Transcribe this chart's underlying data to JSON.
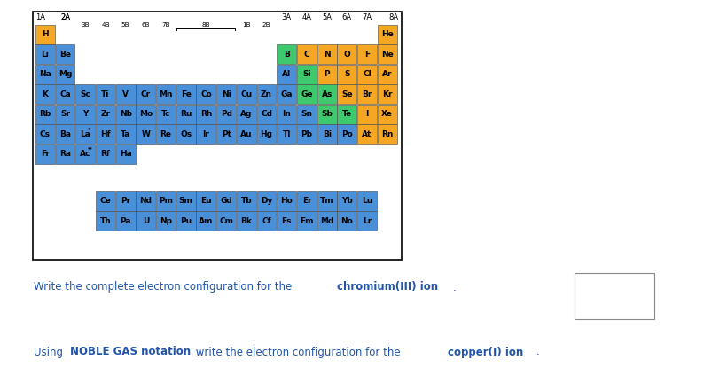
{
  "bg_color": "#ffffff",
  "colors": {
    "orange": "#F5A623",
    "blue": "#4A90D9",
    "green": "#3EC96E",
    "white": "#ffffff"
  },
  "text_color": "#2255AA",
  "text_fontsize": 8.5,
  "elements": {
    "row1": [
      {
        "sym": "H",
        "col": 0,
        "color": "orange"
      },
      {
        "sym": "He",
        "col": 17,
        "color": "orange"
      }
    ],
    "row2": [
      {
        "sym": "Li",
        "col": 0,
        "color": "blue"
      },
      {
        "sym": "Be",
        "col": 1,
        "color": "blue"
      },
      {
        "sym": "B",
        "col": 12,
        "color": "green"
      },
      {
        "sym": "C",
        "col": 13,
        "color": "orange"
      },
      {
        "sym": "N",
        "col": 14,
        "color": "orange"
      },
      {
        "sym": "O",
        "col": 15,
        "color": "orange"
      },
      {
        "sym": "F",
        "col": 16,
        "color": "orange"
      },
      {
        "sym": "Ne",
        "col": 17,
        "color": "orange"
      }
    ],
    "row3": [
      {
        "sym": "Na",
        "col": 0,
        "color": "blue"
      },
      {
        "sym": "Mg",
        "col": 1,
        "color": "blue"
      },
      {
        "sym": "Al",
        "col": 12,
        "color": "blue"
      },
      {
        "sym": "Si",
        "col": 13,
        "color": "green"
      },
      {
        "sym": "P",
        "col": 14,
        "color": "orange"
      },
      {
        "sym": "S",
        "col": 15,
        "color": "orange"
      },
      {
        "sym": "Cl",
        "col": 16,
        "color": "orange"
      },
      {
        "sym": "Ar",
        "col": 17,
        "color": "orange"
      }
    ],
    "row4": [
      {
        "sym": "K",
        "col": 0,
        "color": "blue"
      },
      {
        "sym": "Ca",
        "col": 1,
        "color": "blue"
      },
      {
        "sym": "Sc",
        "col": 2,
        "color": "blue"
      },
      {
        "sym": "Ti",
        "col": 3,
        "color": "blue"
      },
      {
        "sym": "V",
        "col": 4,
        "color": "blue"
      },
      {
        "sym": "Cr",
        "col": 5,
        "color": "blue"
      },
      {
        "sym": "Mn",
        "col": 6,
        "color": "blue"
      },
      {
        "sym": "Fe",
        "col": 7,
        "color": "blue"
      },
      {
        "sym": "Co",
        "col": 8,
        "color": "blue"
      },
      {
        "sym": "Ni",
        "col": 9,
        "color": "blue"
      },
      {
        "sym": "Cu",
        "col": 10,
        "color": "blue"
      },
      {
        "sym": "Zn",
        "col": 11,
        "color": "blue"
      },
      {
        "sym": "Ga",
        "col": 12,
        "color": "blue"
      },
      {
        "sym": "Ge",
        "col": 13,
        "color": "green"
      },
      {
        "sym": "As",
        "col": 14,
        "color": "green"
      },
      {
        "sym": "Se",
        "col": 15,
        "color": "orange"
      },
      {
        "sym": "Br",
        "col": 16,
        "color": "orange"
      },
      {
        "sym": "Kr",
        "col": 17,
        "color": "orange"
      }
    ],
    "row5": [
      {
        "sym": "Rb",
        "col": 0,
        "color": "blue"
      },
      {
        "sym": "Sr",
        "col": 1,
        "color": "blue"
      },
      {
        "sym": "Y",
        "col": 2,
        "color": "blue"
      },
      {
        "sym": "Zr",
        "col": 3,
        "color": "blue"
      },
      {
        "sym": "Nb",
        "col": 4,
        "color": "blue"
      },
      {
        "sym": "Mo",
        "col": 5,
        "color": "blue"
      },
      {
        "sym": "Tc",
        "col": 6,
        "color": "blue"
      },
      {
        "sym": "Ru",
        "col": 7,
        "color": "blue"
      },
      {
        "sym": "Rh",
        "col": 8,
        "color": "blue"
      },
      {
        "sym": "Pd",
        "col": 9,
        "color": "blue"
      },
      {
        "sym": "Ag",
        "col": 10,
        "color": "blue"
      },
      {
        "sym": "Cd",
        "col": 11,
        "color": "blue"
      },
      {
        "sym": "In",
        "col": 12,
        "color": "blue"
      },
      {
        "sym": "Sn",
        "col": 13,
        "color": "blue"
      },
      {
        "sym": "Sb",
        "col": 14,
        "color": "green"
      },
      {
        "sym": "Te",
        "col": 15,
        "color": "green"
      },
      {
        "sym": "I",
        "col": 16,
        "color": "orange"
      },
      {
        "sym": "Xe",
        "col": 17,
        "color": "orange"
      }
    ],
    "row6": [
      {
        "sym": "Cs",
        "col": 0,
        "color": "blue"
      },
      {
        "sym": "Ba",
        "col": 1,
        "color": "blue"
      },
      {
        "sym": "La",
        "col": 2,
        "color": "blue",
        "superscript": "*"
      },
      {
        "sym": "Hf",
        "col": 3,
        "color": "blue"
      },
      {
        "sym": "Ta",
        "col": 4,
        "color": "blue"
      },
      {
        "sym": "W",
        "col": 5,
        "color": "blue"
      },
      {
        "sym": "Re",
        "col": 6,
        "color": "blue"
      },
      {
        "sym": "Os",
        "col": 7,
        "color": "blue"
      },
      {
        "sym": "Ir",
        "col": 8,
        "color": "blue"
      },
      {
        "sym": "Pt",
        "col": 9,
        "color": "blue"
      },
      {
        "sym": "Au",
        "col": 10,
        "color": "blue"
      },
      {
        "sym": "Hg",
        "col": 11,
        "color": "blue"
      },
      {
        "sym": "Tl",
        "col": 12,
        "color": "blue"
      },
      {
        "sym": "Pb",
        "col": 13,
        "color": "blue"
      },
      {
        "sym": "Bi",
        "col": 14,
        "color": "blue"
      },
      {
        "sym": "Po",
        "col": 15,
        "color": "blue"
      },
      {
        "sym": "At",
        "col": 16,
        "color": "orange"
      },
      {
        "sym": "Rn",
        "col": 17,
        "color": "orange"
      }
    ],
    "row7": [
      {
        "sym": "Fr",
        "col": 0,
        "color": "blue"
      },
      {
        "sym": "Ra",
        "col": 1,
        "color": "blue"
      },
      {
        "sym": "Ac",
        "col": 2,
        "color": "blue",
        "superscript": "**"
      },
      {
        "sym": "Rf",
        "col": 3,
        "color": "blue"
      },
      {
        "sym": "Ha",
        "col": 4,
        "color": "blue"
      }
    ],
    "lanthanides": [
      {
        "sym": "Ce",
        "col": 3
      },
      {
        "sym": "Pr",
        "col": 4
      },
      {
        "sym": "Nd",
        "col": 5
      },
      {
        "sym": "Pm",
        "col": 6
      },
      {
        "sym": "Sm",
        "col": 7
      },
      {
        "sym": "Eu",
        "col": 8
      },
      {
        "sym": "Gd",
        "col": 9
      },
      {
        "sym": "Tb",
        "col": 10
      },
      {
        "sym": "Dy",
        "col": 11
      },
      {
        "sym": "Ho",
        "col": 12
      },
      {
        "sym": "Er",
        "col": 13
      },
      {
        "sym": "Tm",
        "col": 14
      },
      {
        "sym": "Yb",
        "col": 15
      },
      {
        "sym": "Lu",
        "col": 16
      }
    ],
    "actinides": [
      {
        "sym": "Th",
        "col": 3
      },
      {
        "sym": "Pa",
        "col": 4
      },
      {
        "sym": "U",
        "col": 5
      },
      {
        "sym": "Np",
        "col": 6
      },
      {
        "sym": "Pu",
        "col": 7
      },
      {
        "sym": "Am",
        "col": 8
      },
      {
        "sym": "Cm",
        "col": 9
      },
      {
        "sym": "Bk",
        "col": 10
      },
      {
        "sym": "Cf",
        "col": 11
      },
      {
        "sym": "Es",
        "col": 12
      },
      {
        "sym": "Fm",
        "col": 13
      },
      {
        "sym": "Md",
        "col": 14
      },
      {
        "sym": "No",
        "col": 15
      },
      {
        "sym": "Lr",
        "col": 16
      }
    ]
  }
}
